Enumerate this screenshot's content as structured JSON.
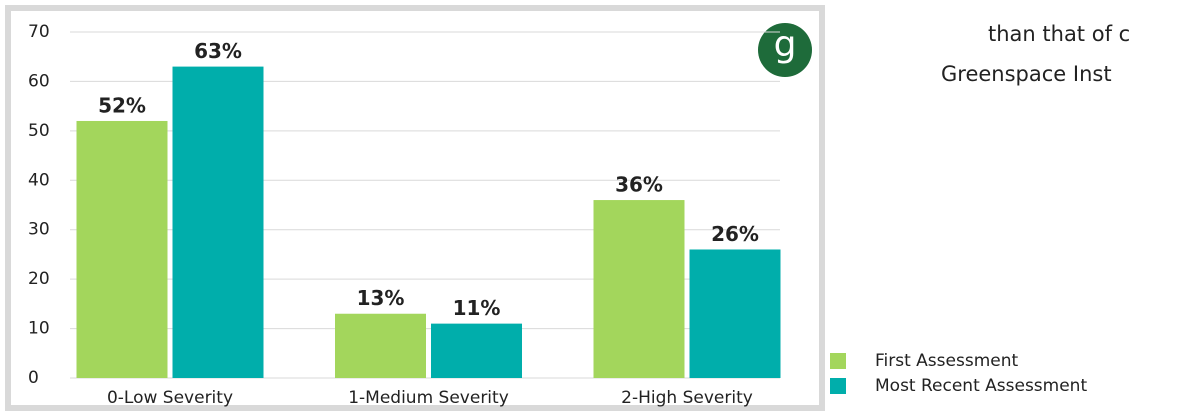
{
  "chart_data": {
    "type": "bar",
    "categories": [
      "0-Low Severity",
      "1-Medium Severity",
      "2-High Severity"
    ],
    "series": [
      {
        "name": "First Assessment",
        "color": "#a3d65c",
        "values": [
          52,
          13,
          36
        ],
        "value_labels": [
          "52%",
          "13%",
          "36%"
        ]
      },
      {
        "name": "Most Recent Assessment",
        "color": "#00aeab",
        "values": [
          63,
          11,
          26
        ],
        "value_labels": [
          "63%",
          "11%",
          "26%"
        ]
      }
    ],
    "ylim": [
      0,
      70
    ],
    "yticks": [
      0,
      10,
      20,
      30,
      40,
      50,
      60,
      70
    ],
    "grid": true,
    "legend": "bottom-right"
  },
  "logo": "g",
  "side_text": [
    "than that of c",
    "Greenspace Inst"
  ]
}
